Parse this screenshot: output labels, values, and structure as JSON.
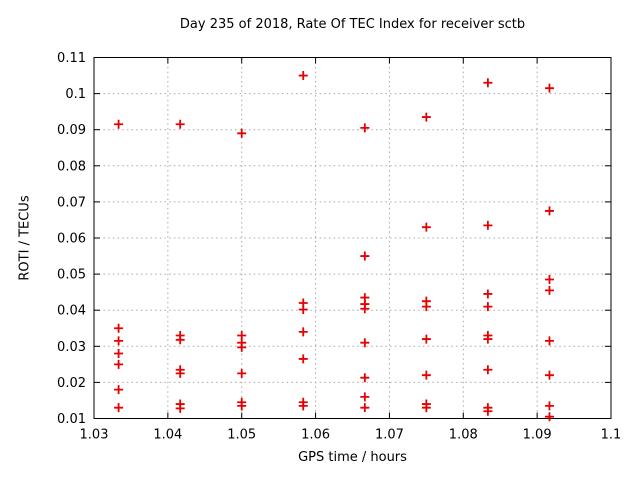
{
  "figure": {
    "background": "#ffffff",
    "border_color": "#000000",
    "grid_color": "#a8a8a8",
    "marker_color": "#e60000"
  },
  "chart_data": {
    "type": "scatter",
    "title": "Day 235 of 2018, Rate Of TEC Index for receiver sctb",
    "xlabel": "GPS time / hours",
    "ylabel": "ROTI / TECUs",
    "xlim": [
      1.03,
      1.1
    ],
    "ylim": [
      0.01,
      0.11
    ],
    "grid": {
      "visible": true,
      "style": "dotted"
    },
    "legend": "none",
    "marker": {
      "shape": "plus",
      "size": 9
    },
    "xticks": {
      "values": [
        1.03,
        1.04,
        1.05,
        1.06,
        1.07,
        1.08,
        1.09,
        1.1
      ],
      "labels": [
        "1.03",
        "1.04",
        "1.05",
        "1.06",
        "1.07",
        "1.08",
        "1.09",
        "1.1"
      ]
    },
    "yticks": {
      "values": [
        0.01,
        0.02,
        0.03,
        0.04,
        0.05,
        0.06,
        0.07,
        0.08,
        0.09,
        0.1,
        0.11
      ],
      "labels": [
        "0.01",
        "0.02",
        "0.03",
        "0.04",
        "0.05",
        "0.06",
        "0.07",
        "0.08",
        "0.09",
        "0.1",
        "0.11"
      ]
    },
    "series": [
      {
        "name": "ROTI",
        "points": [
          [
            1.03333,
            0.0915
          ],
          [
            1.03333,
            0.035
          ],
          [
            1.03333,
            0.0315
          ],
          [
            1.03333,
            0.028
          ],
          [
            1.03333,
            0.025
          ],
          [
            1.03333,
            0.018
          ],
          [
            1.03333,
            0.013
          ],
          [
            1.04167,
            0.0915
          ],
          [
            1.04167,
            0.033
          ],
          [
            1.04167,
            0.0318
          ],
          [
            1.04167,
            0.0235
          ],
          [
            1.04167,
            0.0225
          ],
          [
            1.04167,
            0.014
          ],
          [
            1.04167,
            0.0128
          ],
          [
            1.05,
            0.089
          ],
          [
            1.05,
            0.033
          ],
          [
            1.05,
            0.031
          ],
          [
            1.05,
            0.0297
          ],
          [
            1.05,
            0.0225
          ],
          [
            1.05,
            0.0145
          ],
          [
            1.05,
            0.0135
          ],
          [
            1.05833,
            0.105
          ],
          [
            1.05833,
            0.042
          ],
          [
            1.05833,
            0.0402
          ],
          [
            1.05833,
            0.034
          ],
          [
            1.05833,
            0.0265
          ],
          [
            1.05833,
            0.0145
          ],
          [
            1.05833,
            0.0135
          ],
          [
            1.06667,
            0.0905
          ],
          [
            1.06667,
            0.055
          ],
          [
            1.06667,
            0.0435
          ],
          [
            1.06667,
            0.0417
          ],
          [
            1.06667,
            0.0404
          ],
          [
            1.06667,
            0.031
          ],
          [
            1.06667,
            0.0213
          ],
          [
            1.06667,
            0.016
          ],
          [
            1.06667,
            0.013
          ],
          [
            1.075,
            0.0935
          ],
          [
            1.075,
            0.063
          ],
          [
            1.075,
            0.0425
          ],
          [
            1.075,
            0.041
          ],
          [
            1.075,
            0.032
          ],
          [
            1.075,
            0.022
          ],
          [
            1.075,
            0.014
          ],
          [
            1.075,
            0.013
          ],
          [
            1.08333,
            0.103
          ],
          [
            1.08333,
            0.0635
          ],
          [
            1.08333,
            0.0445
          ],
          [
            1.08333,
            0.041
          ],
          [
            1.08333,
            0.033
          ],
          [
            1.08333,
            0.032
          ],
          [
            1.08333,
            0.0235
          ],
          [
            1.08333,
            0.013
          ],
          [
            1.08333,
            0.012
          ],
          [
            1.09167,
            0.1015
          ],
          [
            1.09167,
            0.0675
          ],
          [
            1.09167,
            0.0485
          ],
          [
            1.09167,
            0.0455
          ],
          [
            1.09167,
            0.0315
          ],
          [
            1.09167,
            0.022
          ],
          [
            1.09167,
            0.0135
          ],
          [
            1.09167,
            0.0105
          ]
        ]
      }
    ]
  }
}
